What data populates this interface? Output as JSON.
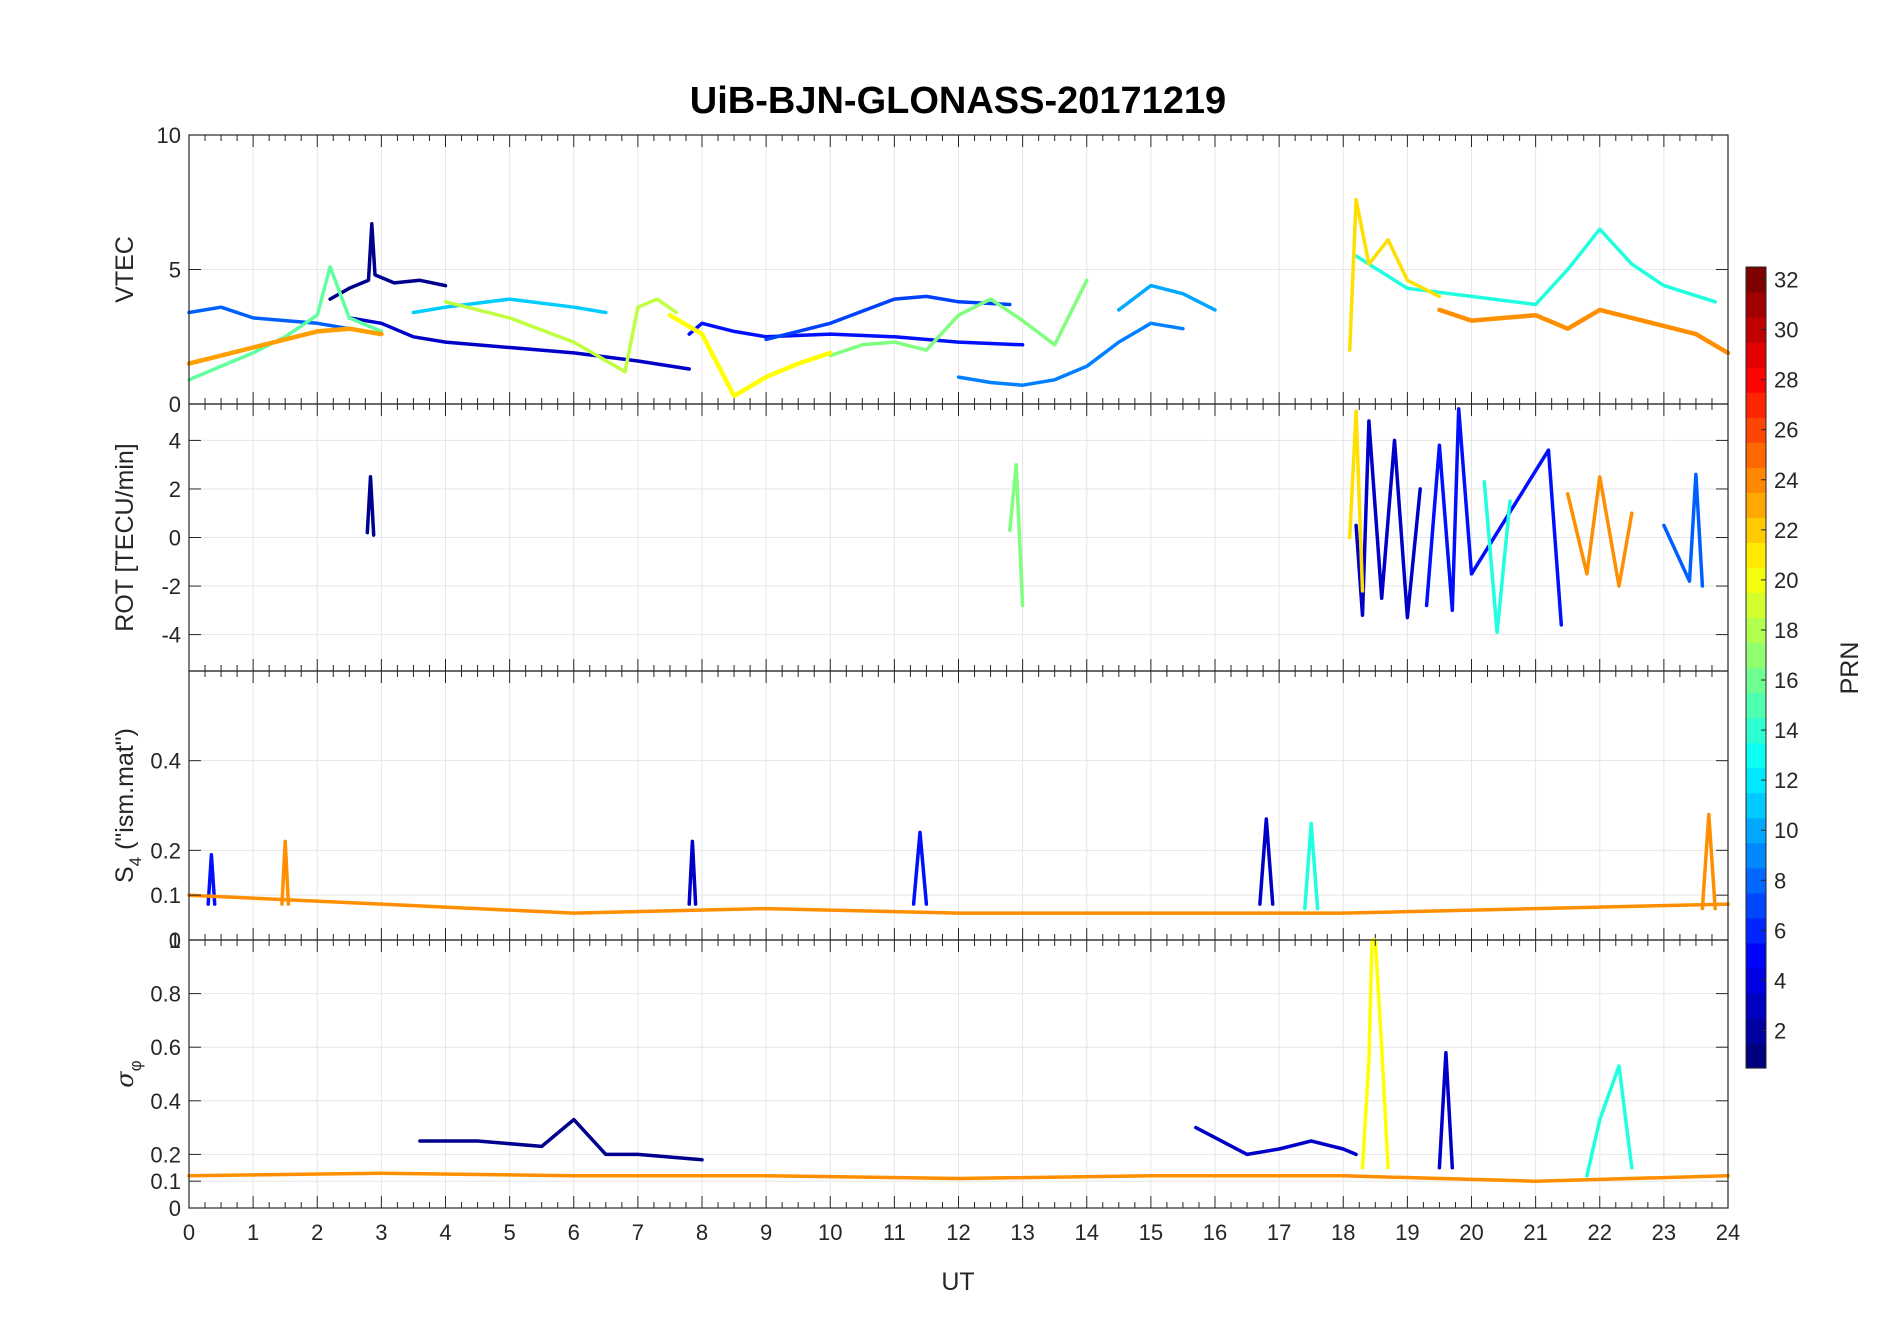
{
  "chart_data": {
    "type": "line",
    "title": "UiB-BJN-GLONASS-20171219",
    "xlabel": "UT",
    "xlim": [
      0,
      24
    ],
    "x_ticks": [
      "0",
      "1",
      "2",
      "3",
      "4",
      "5",
      "6",
      "7",
      "8",
      "9",
      "10",
      "11",
      "12",
      "13",
      "14",
      "15",
      "16",
      "17",
      "18",
      "19",
      "20",
      "21",
      "22",
      "23",
      "24"
    ],
    "grid": true,
    "colorbar": {
      "label": "PRN",
      "colormap": "jet",
      "range": [
        1,
        32
      ],
      "ticks": [
        "2",
        "4",
        "6",
        "8",
        "10",
        "12",
        "14",
        "16",
        "18",
        "20",
        "22",
        "24",
        "26",
        "28",
        "30",
        "32"
      ]
    },
    "panels": [
      {
        "ylabel": "VTEC",
        "ylim": [
          0,
          10
        ],
        "y_ticks": [
          "0",
          "5",
          "10"
        ],
        "series": [
          {
            "color": "#00008F",
            "x": [
              2.2,
              2.5,
              2.8,
              2.85,
              2.9,
              3.2,
              3.6,
              4.0
            ],
            "y": [
              3.9,
              4.3,
              4.6,
              6.7,
              4.8,
              4.5,
              4.6,
              4.4
            ]
          },
          {
            "color": "#0000C8",
            "x": [
              2.5,
              3.0,
              3.5,
              4.0,
              5.0,
              6.0,
              7.0,
              7.8
            ],
            "y": [
              3.2,
              3.0,
              2.5,
              2.3,
              2.1,
              1.9,
              1.6,
              1.3
            ]
          },
          {
            "color": "#0010FF",
            "x": [
              7.8,
              8.0,
              8.5,
              9.0,
              10.0,
              11.0,
              12.0,
              13.0
            ],
            "y": [
              2.6,
              3.0,
              2.7,
              2.5,
              2.6,
              2.5,
              2.3,
              2.2
            ]
          },
          {
            "color": "#0040FF",
            "x": [
              9.0,
              10.0,
              11.0,
              11.5,
              12.0,
              12.8
            ],
            "y": [
              2.4,
              3.0,
              3.9,
              4.0,
              3.8,
              3.7
            ]
          },
          {
            "color": "#0060FF",
            "x": [
              0.0,
              0.5,
              1.0,
              1.5,
              2.0,
              2.5,
              3.0
            ],
            "y": [
              3.4,
              3.6,
              3.2,
              3.1,
              3.0,
              2.8,
              2.6
            ]
          },
          {
            "color": "#0080FF",
            "x": [
              12.0,
              12.5,
              13.0,
              13.5,
              14.0,
              14.5,
              15.0,
              15.5
            ],
            "y": [
              1.0,
              0.8,
              0.7,
              0.9,
              1.4,
              2.3,
              3.0,
              2.8
            ]
          },
          {
            "color": "#00A8FF",
            "x": [
              14.5,
              15.0,
              15.5,
              16.0
            ],
            "y": [
              3.5,
              4.4,
              4.1,
              3.5
            ]
          },
          {
            "color": "#00CCFF",
            "x": [
              3.5,
              4.0,
              5.0,
              6.0,
              6.5
            ],
            "y": [
              3.4,
              3.6,
              3.9,
              3.6,
              3.4
            ]
          },
          {
            "color": "#20FFDF",
            "x": [
              18.2,
              19.0,
              20.0,
              21.0,
              21.5,
              22.0,
              22.5,
              23.0,
              23.8
            ],
            "y": [
              5.5,
              4.3,
              4.0,
              3.7,
              5.0,
              6.5,
              5.2,
              4.4,
              3.8
            ]
          },
          {
            "color": "#60FF9F",
            "x": [
              0.0,
              0.5,
              1.0,
              1.5,
              2.0,
              2.2,
              2.5,
              3.0
            ],
            "y": [
              0.9,
              1.4,
              1.9,
              2.5,
              3.3,
              5.1,
              3.2,
              2.7
            ]
          },
          {
            "color": "#80FF7F",
            "x": [
              10.0,
              10.5,
              11.0,
              11.5,
              12.0,
              12.5,
              13.0,
              13.5,
              14.0
            ],
            "y": [
              1.8,
              2.2,
              2.3,
              2.0,
              3.3,
              3.9,
              3.1,
              2.2,
              4.6
            ]
          },
          {
            "color": "#BFFF3F",
            "x": [
              4.0,
              5.0,
              6.0,
              6.8,
              7.0,
              7.3,
              7.6
            ],
            "y": [
              3.8,
              3.2,
              2.3,
              1.2,
              3.6,
              3.9,
              3.4
            ]
          },
          {
            "color": "#FFFF00",
            "x": [
              7.5,
              8.0,
              8.5,
              9.0,
              9.5,
              10.0
            ],
            "y": [
              3.3,
              2.6,
              0.3,
              1.0,
              1.5,
              1.9
            ],
            "lw": 4.5
          },
          {
            "color": "#FFDF00",
            "x": [
              18.1,
              18.2,
              18.4,
              18.7,
              19.0,
              19.5
            ],
            "y": [
              2.0,
              7.6,
              5.2,
              6.1,
              4.6,
              4.0
            ]
          },
          {
            "color": "#FF9F00",
            "x": [
              0.0,
              0.5,
              1.0,
              1.5,
              2.0,
              2.5,
              3.0
            ],
            "y": [
              1.5,
              1.8,
              2.1,
              2.4,
              2.7,
              2.8,
              2.6
            ],
            "lw": 4.5
          },
          {
            "color": "#FF8F00",
            "x": [
              19.5,
              20.0,
              21.0,
              21.5,
              22.0,
              22.5,
              23.0,
              23.5,
              24.0
            ],
            "y": [
              3.5,
              3.1,
              3.3,
              2.8,
              3.5,
              3.2,
              2.9,
              2.6,
              1.9
            ],
            "lw": 4.5
          }
        ]
      },
      {
        "ylabel": "ROT [TECU/min]",
        "ylim": [
          -5.5,
          5.5
        ],
        "y_ticks": [
          "-4",
          "-2",
          "0",
          "2",
          "4"
        ],
        "series": [
          {
            "color": "#00008F",
            "x": [
              2.78,
              2.83,
              2.88
            ],
            "y": [
              0.2,
              2.5,
              0.1
            ]
          },
          {
            "color": "#0000C8",
            "x": [
              18.2,
              18.3,
              18.4,
              18.6,
              18.8,
              19.0,
              19.2
            ],
            "y": [
              0.5,
              -3.2,
              4.8,
              -2.5,
              4.0,
              -3.3,
              2.0
            ]
          },
          {
            "color": "#0010FF",
            "x": [
              19.3,
              19.5,
              19.7,
              19.8,
              20.0,
              21.2,
              21.4
            ],
            "y": [
              -2.8,
              3.8,
              -3.0,
              5.3,
              -1.5,
              3.6,
              -3.6
            ]
          },
          {
            "color": "#0060FF",
            "x": [
              23.0,
              23.4,
              23.5,
              23.6
            ],
            "y": [
              0.5,
              -1.8,
              2.6,
              -2.0
            ]
          },
          {
            "color": "#20FFDF",
            "x": [
              20.2,
              20.4,
              20.6
            ],
            "y": [
              2.3,
              -3.9,
              1.5
            ]
          },
          {
            "color": "#80FF7F",
            "x": [
              12.8,
              12.9,
              13.0
            ],
            "y": [
              0.3,
              3.0,
              -2.8
            ]
          },
          {
            "color": "#FFDF00",
            "x": [
              18.1,
              18.2,
              18.3
            ],
            "y": [
              0.0,
              5.2,
              -2.2
            ]
          },
          {
            "color": "#FF8F00",
            "x": [
              21.5,
              21.8,
              22.0,
              22.3,
              22.5
            ],
            "y": [
              1.8,
              -1.5,
              2.5,
              -2.0,
              1.0
            ]
          }
        ]
      },
      {
        "ylabel": "S4 (\"ism.mat\")",
        "ylabel_symbol": "S",
        "ylabel_subscript": "4",
        "ylabel_rest": " (\"ism.mat\")",
        "ylim": [
          0,
          0.6
        ],
        "y_ticks": [
          "0",
          "0.1",
          "0.2",
          "0.4"
        ],
        "series": [
          {
            "color": "#0010FF",
            "x": [
              0.3,
              0.35,
              0.4
            ],
            "y": [
              0.08,
              0.19,
              0.08
            ]
          },
          {
            "color": "#0000C8",
            "x": [
              7.8,
              7.85,
              7.9
            ],
            "y": [
              0.08,
              0.22,
              0.08
            ]
          },
          {
            "color": "#0010FF",
            "x": [
              11.3,
              11.4,
              11.5
            ],
            "y": [
              0.08,
              0.24,
              0.08
            ]
          },
          {
            "color": "#0000C8",
            "x": [
              16.7,
              16.8,
              16.9
            ],
            "y": [
              0.08,
              0.27,
              0.08
            ]
          },
          {
            "color": "#FF8F00",
            "x": [
              1.45,
              1.5,
              1.55
            ],
            "y": [
              0.08,
              0.22,
              0.08
            ]
          },
          {
            "color": "#FF8F00",
            "x": [
              23.6,
              23.7,
              23.8
            ],
            "y": [
              0.07,
              0.28,
              0.07
            ]
          },
          {
            "color": "#20FFDF",
            "x": [
              17.4,
              17.5,
              17.6
            ],
            "y": [
              0.07,
              0.26,
              0.07
            ]
          },
          {
            "color": "#FF8F00",
            "x": [
              0.0,
              3.0,
              6.0,
              9.0,
              12.0,
              15.0,
              18.0,
              21.0,
              24.0
            ],
            "y": [
              0.1,
              0.08,
              0.06,
              0.07,
              0.06,
              0.06,
              0.06,
              0.07,
              0.08
            ]
          }
        ]
      },
      {
        "ylabel": "σφ",
        "ylabel_symbol": "σ",
        "ylabel_subscript": "φ",
        "ylim": [
          0,
          1
        ],
        "y_ticks": [
          "0",
          "0.1",
          "0.2",
          "0.4",
          "0.6",
          "0.8",
          "1"
        ],
        "series": [
          {
            "color": "#00008F",
            "x": [
              3.6,
              4.5,
              5.5,
              6.0,
              6.5,
              7.0,
              8.0
            ],
            "y": [
              0.25,
              0.25,
              0.23,
              0.33,
              0.2,
              0.2,
              0.18
            ]
          },
          {
            "color": "#0000C8",
            "x": [
              15.7,
              16.5,
              17.0,
              17.5,
              18.0,
              18.2
            ],
            "y": [
              0.3,
              0.2,
              0.22,
              0.25,
              0.22,
              0.2
            ]
          },
          {
            "color": "#FFFF00",
            "x": [
              18.3,
              18.4,
              18.45,
              18.5,
              18.6,
              18.7
            ],
            "y": [
              0.15,
              0.55,
              1.0,
              1.0,
              0.6,
              0.15
            ]
          },
          {
            "color": "#0000C8",
            "x": [
              19.5,
              19.6,
              19.7
            ],
            "y": [
              0.15,
              0.58,
              0.15
            ]
          },
          {
            "color": "#20FFDF",
            "x": [
              21.8,
              22.0,
              22.3,
              22.5
            ],
            "y": [
              0.12,
              0.33,
              0.53,
              0.15
            ]
          },
          {
            "color": "#FF8F00",
            "x": [
              0.0,
              3.0,
              6.0,
              9.0,
              12.0,
              15.0,
              18.0,
              21.0,
              24.0
            ],
            "y": [
              0.12,
              0.13,
              0.12,
              0.12,
              0.11,
              0.12,
              0.12,
              0.1,
              0.12
            ]
          }
        ]
      }
    ]
  }
}
